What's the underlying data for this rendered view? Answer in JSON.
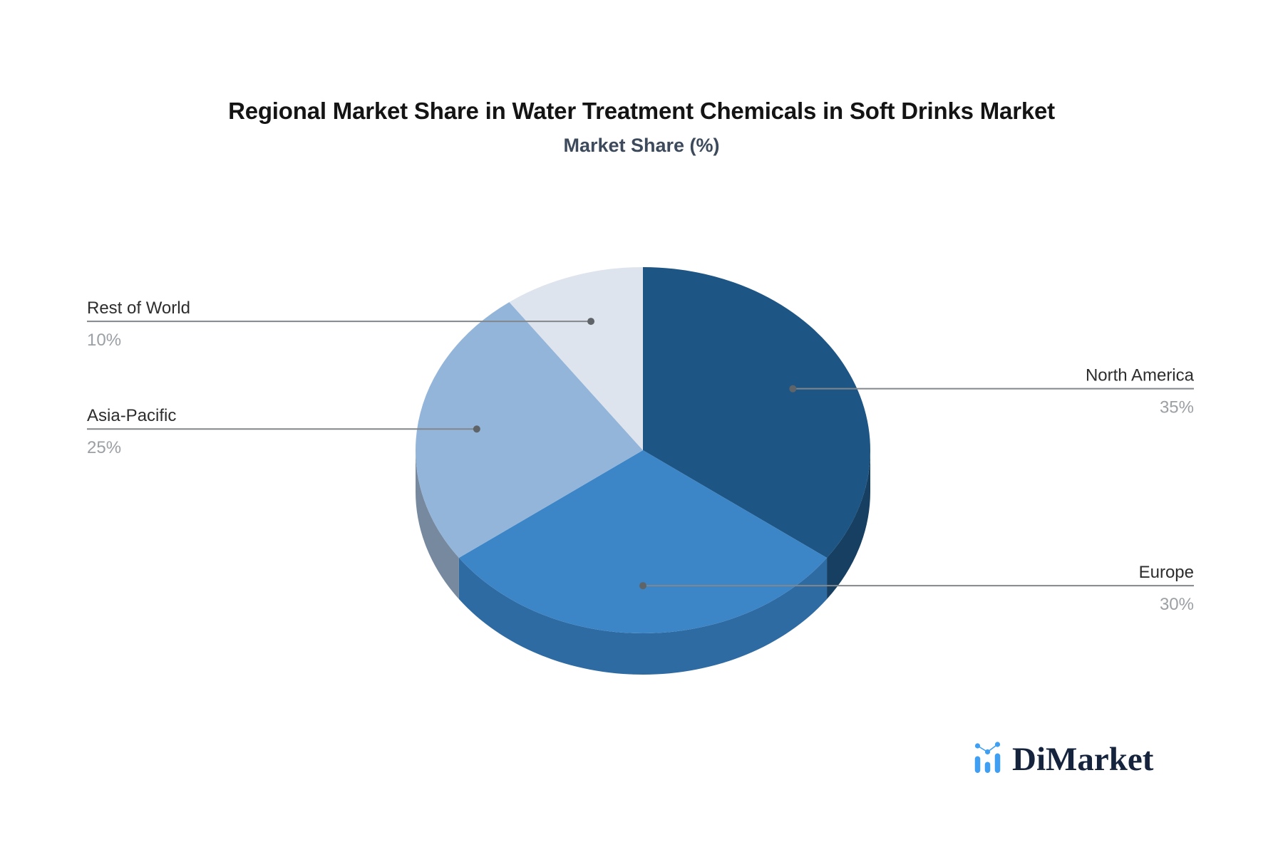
{
  "header": {
    "title": "Regional Market Share in Water Treatment Chemicals in Soft Drinks Market",
    "subtitle": "Market Share (%)"
  },
  "chart_data": {
    "type": "pie",
    "style": "3d",
    "title": "Regional Market Share in Water Treatment Chemicals in Soft Drinks Market",
    "subtitle": "Market Share (%)",
    "unit": "%",
    "total": 100,
    "start_angle_deg": 0,
    "direction": "clockwise",
    "legend_position": "leader-labels",
    "slices": [
      {
        "label": "North America",
        "value": 35,
        "pct_label": "35%",
        "color": "#1d5585",
        "side_color": "#163f61",
        "label_side": "right"
      },
      {
        "label": "Europe",
        "value": 30,
        "pct_label": "30%",
        "color": "#3c86c8",
        "side_color": "#2f6ba3",
        "label_side": "right"
      },
      {
        "label": "Asia-Pacific",
        "value": 25,
        "pct_label": "25%",
        "color": "#93b5da",
        "side_color": "#76899f",
        "label_side": "left"
      },
      {
        "label": "Rest of World",
        "value": 10,
        "pct_label": "10%",
        "color": "#dde4ee",
        "side_color": "#c2cbd9",
        "label_side": "left"
      }
    ],
    "label_text_color": "#2d2d2d",
    "pct_text_color": "#9ba0a5",
    "leader_line_color": "#82878b",
    "leader_dot_color": "#5f6468",
    "background_color": "#ffffff"
  },
  "branding": {
    "logo_text": "DiMarket",
    "logo_icon": "bar-chart-trend-icon",
    "logo_icon_color": "#3f9ff2",
    "logo_text_color": "#15233c"
  }
}
